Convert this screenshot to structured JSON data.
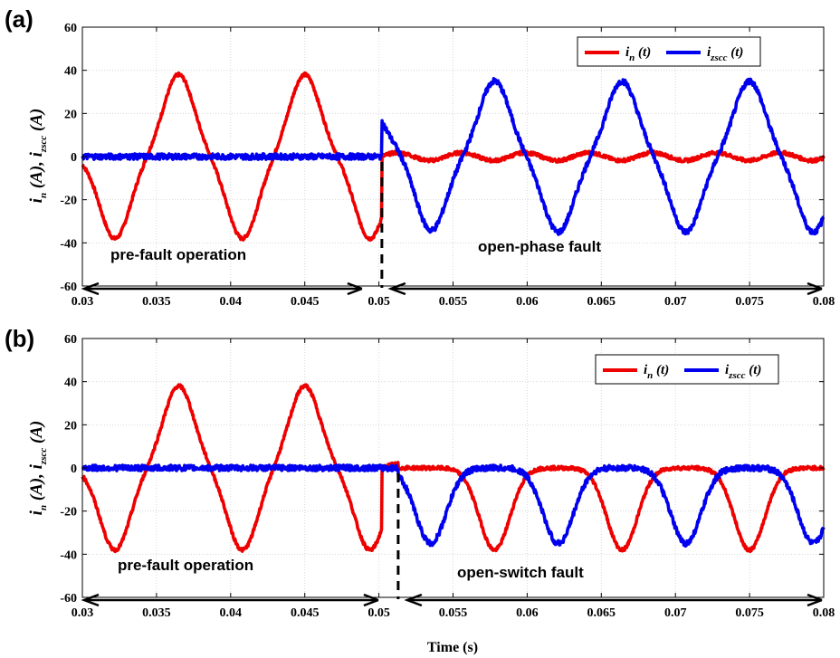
{
  "chart_data": [
    {
      "type": "line",
      "panel_label": "(a)",
      "ylabel_parts": [
        "i",
        "n",
        " (A),  i",
        "zscc",
        " (A)"
      ],
      "xlim": [
        0.03,
        0.08
      ],
      "ylim": [
        -60,
        60
      ],
      "xticks": [
        0.03,
        0.035,
        0.04,
        0.045,
        0.05,
        0.055,
        0.06,
        0.065,
        0.07,
        0.075,
        0.08
      ],
      "xtick_labels": [
        "0.03",
        "0.035",
        "0.04",
        "0.045",
        "0.05",
        "0.055",
        "0.06",
        "0.065",
        "0.07",
        "0.075",
        "0.08"
      ],
      "yticks": [
        -60,
        -40,
        -20,
        0,
        20,
        40,
        60
      ],
      "ytick_labels": [
        "-60",
        "-40",
        "-20",
        "0",
        "20",
        "40",
        "60"
      ],
      "fault_time": 0.0502,
      "series": [
        {
          "name_parts": [
            "i",
            "n",
            " (t)"
          ],
          "color": "#ee0000",
          "description": "pre-fault: negative pulses peaking ~-38 A at t=0.0322, 0.0408, 0.0494 and positive pulses ~+38 A at t=0.0365, 0.0450; post-fault ~0 with small oscillation"
        },
        {
          "name_parts": [
            "i",
            "zscc",
            " (t)"
          ],
          "color": "#0000ee",
          "description": "pre-fault ~0 with ripple; step to ~17 A at t=0.0502; then pulses ~-35 A at t=0.0535, 0.0621, 0.0707, 0.0793 and ~+35 A at t=0.0578, 0.0664, 0.0750"
        }
      ],
      "annotations": [
        "pre-fault operation",
        "open-phase fault"
      ],
      "legend_position": "top-right",
      "grid": true
    },
    {
      "type": "line",
      "panel_label": "(b)",
      "ylabel_parts": [
        "i",
        "n",
        " (A),  i",
        "zscc",
        " (A)"
      ],
      "xlabel": "Time (s)",
      "xlim": [
        0.03,
        0.08
      ],
      "ylim": [
        -60,
        60
      ],
      "xticks": [
        0.03,
        0.035,
        0.04,
        0.045,
        0.05,
        0.055,
        0.06,
        0.065,
        0.07,
        0.075,
        0.08
      ],
      "xtick_labels": [
        "0.03",
        "0.035",
        "0.04",
        "0.045",
        "0.05",
        "0.055",
        "0.06",
        "0.065",
        "0.07",
        "0.075",
        "0.08"
      ],
      "yticks": [
        -60,
        -40,
        -20,
        0,
        20,
        40,
        60
      ],
      "ytick_labels": [
        "-60",
        "-40",
        "-20",
        "0",
        "20",
        "40",
        "60"
      ],
      "fault_time": 0.0513,
      "series": [
        {
          "name_parts": [
            "i",
            "n",
            " (t)"
          ],
          "color": "#ee0000",
          "description": "pre-fault: negative pulses ~-38 A at t=0.0322, 0.0408, 0.0494 and positive pulses ~+38 A at t=0.0365, 0.0450; post-fault: only negative pulses ~-38 A at t=0.0578, 0.0664, 0.0750, 0.0836"
        },
        {
          "name_parts": [
            "i",
            "zscc",
            " (t)"
          ],
          "color": "#0000ee",
          "description": "pre-fault ~0 with ripple; post-fault negative pulses ~-35 A at t=0.0535, 0.0621, 0.0707, 0.0793"
        }
      ],
      "annotations": [
        "pre-fault operation",
        "open-switch fault"
      ],
      "legend_position": "top-right",
      "grid": true
    }
  ]
}
